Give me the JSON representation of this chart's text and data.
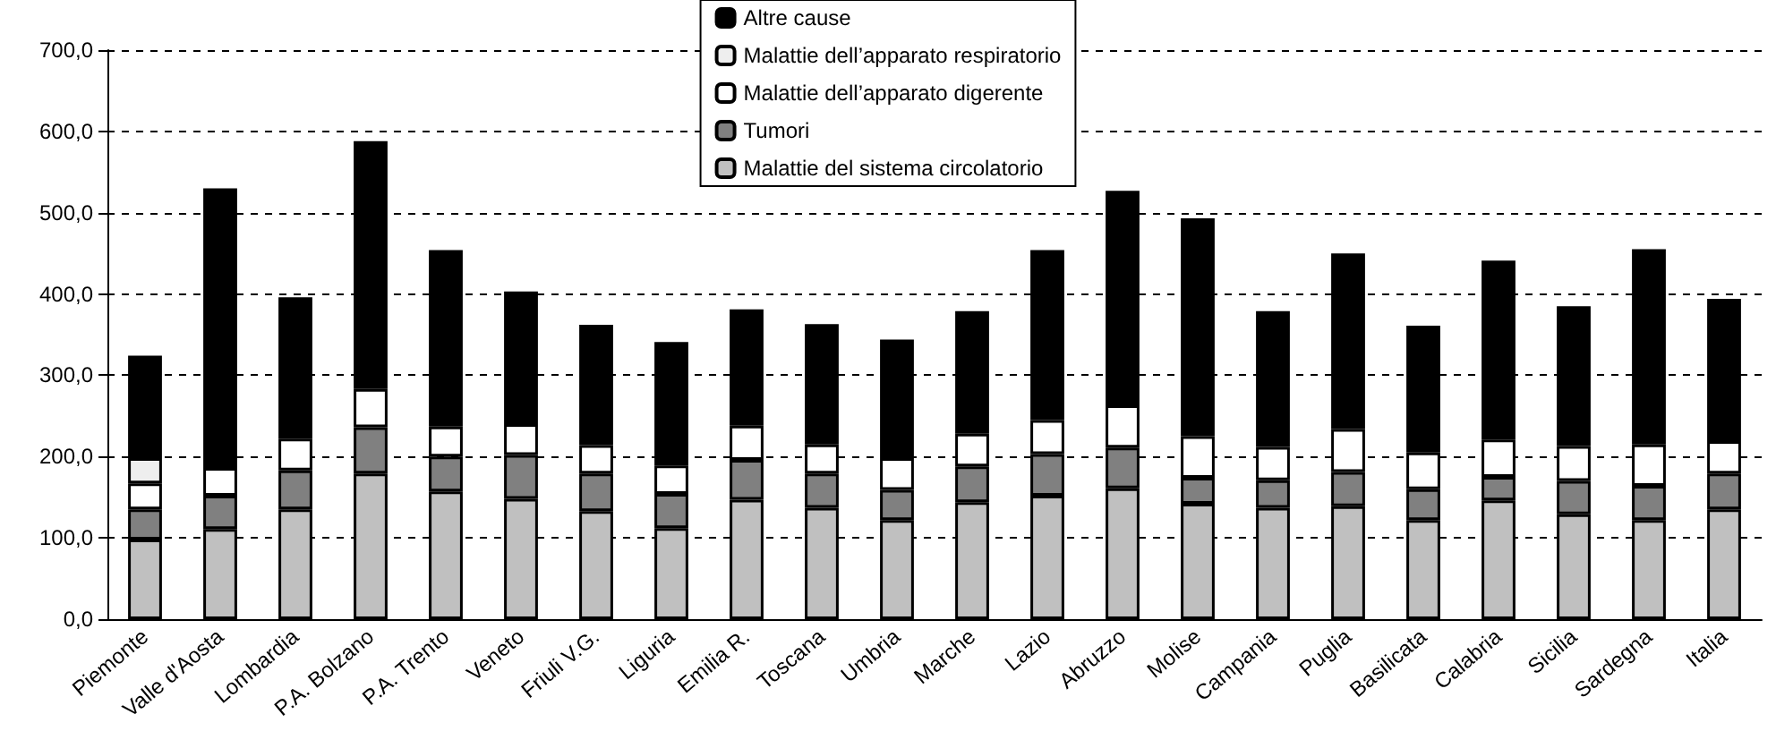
{
  "chart_data": {
    "type": "bar",
    "stacked": true,
    "categories": [
      "Piemonte",
      "Valle d'Aosta",
      "Lombardia",
      "P.A. Bolzano",
      "P.A. Trento",
      "Veneto",
      "Friuli V.G.",
      "Liguria",
      "Emilia R.",
      "Toscana",
      "Umbria",
      "Marche",
      "Lazio",
      "Abruzzo",
      "Molise",
      "Campania",
      "Puglia",
      "Basilicata",
      "Calabria",
      "Sicilia",
      "Sardegna",
      "Italia"
    ],
    "series": [
      {
        "name": "Malattie del sistema circolatorio",
        "color": "#c0c0c0",
        "values": [
          98,
          111,
          135,
          179,
          157,
          148,
          133,
          112,
          147,
          137,
          122,
          144,
          152,
          161,
          142,
          137,
          139,
          122,
          146,
          129,
          122,
          135
        ]
      },
      {
        "name": "Tumori",
        "color": "#808080",
        "values": [
          37,
          41,
          48,
          57,
          43,
          54,
          46,
          42,
          49,
          42,
          37,
          44,
          51,
          50,
          32,
          34,
          42,
          38,
          29,
          41,
          42,
          44
        ]
      },
      {
        "name": "Malattie dell’apparato digerente",
        "color": "#ffffff",
        "values": [
          32,
          34,
          39,
          47,
          37,
          38,
          35,
          35,
          42,
          36,
          39,
          40,
          42,
          52,
          51,
          41,
          53,
          45,
          46,
          43,
          51,
          40
        ]
      },
      {
        "name": "Malattie dell’apparato respiratorio",
        "color": "#eeeeee",
        "values": [
          31,
          null,
          null,
          null,
          null,
          null,
          null,
          null,
          null,
          null,
          null,
          null,
          null,
          null,
          null,
          null,
          null,
          null,
          null,
          null,
          null,
          null
        ]
      },
      {
        "name": "Altre cause",
        "color": "#000000",
        "values": [
          126,
          344,
          174,
          305,
          217,
          163,
          148,
          152,
          143,
          148,
          146,
          151,
          209,
          264,
          268,
          167,
          216,
          156,
          220,
          172,
          240,
          175
        ]
      }
    ],
    "ylim": [
      0,
      700
    ],
    "yticks": [
      {
        "value": 0,
        "label": "0,0"
      },
      {
        "value": 100,
        "label": "100,0"
      },
      {
        "value": 200,
        "label": "200,0"
      },
      {
        "value": 300,
        "label": "300,0"
      },
      {
        "value": 400,
        "label": "400,0"
      },
      {
        "value": 500,
        "label": "500,0"
      },
      {
        "value": 600,
        "label": "600,0"
      },
      {
        "value": 700,
        "label": "700,0"
      }
    ],
    "grid": "y",
    "legend": "top"
  }
}
